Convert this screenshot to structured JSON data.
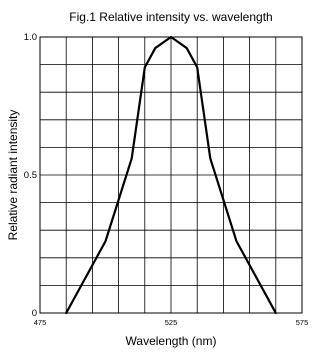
{
  "chart_data": {
    "type": "line",
    "title": "Fig.1 Relative intensity vs. wavelength",
    "xlabel": "Wavelength (nm)",
    "ylabel": "Relative radiant intensity",
    "xlim": [
      475,
      575
    ],
    "ylim": [
      0,
      1.0
    ],
    "x_ticks": [
      {
        "value": 475,
        "label": "475"
      },
      {
        "value": 525,
        "label": "525"
      },
      {
        "value": 575,
        "label": "575"
      }
    ],
    "y_ticks": [
      {
        "value": 0,
        "label": "0"
      },
      {
        "value": 0.5,
        "label": "0.5"
      },
      {
        "value": 1.0,
        "label": "1.0"
      }
    ],
    "x_gridlines": [
      475,
      485,
      495,
      505,
      515,
      525,
      535,
      545,
      555,
      565,
      575
    ],
    "y_gridlines": [
      0,
      0.1,
      0.2,
      0.3,
      0.4,
      0.5,
      0.6,
      0.7,
      0.8,
      0.9,
      1.0
    ],
    "grid": true,
    "series": [
      {
        "x": [
          485,
          500,
          510,
          515,
          519,
          525,
          531,
          535,
          540,
          550,
          565
        ],
        "y": [
          0.0,
          0.26,
          0.56,
          0.89,
          0.96,
          1.0,
          0.96,
          0.89,
          0.56,
          0.26,
          0.0
        ]
      }
    ]
  }
}
